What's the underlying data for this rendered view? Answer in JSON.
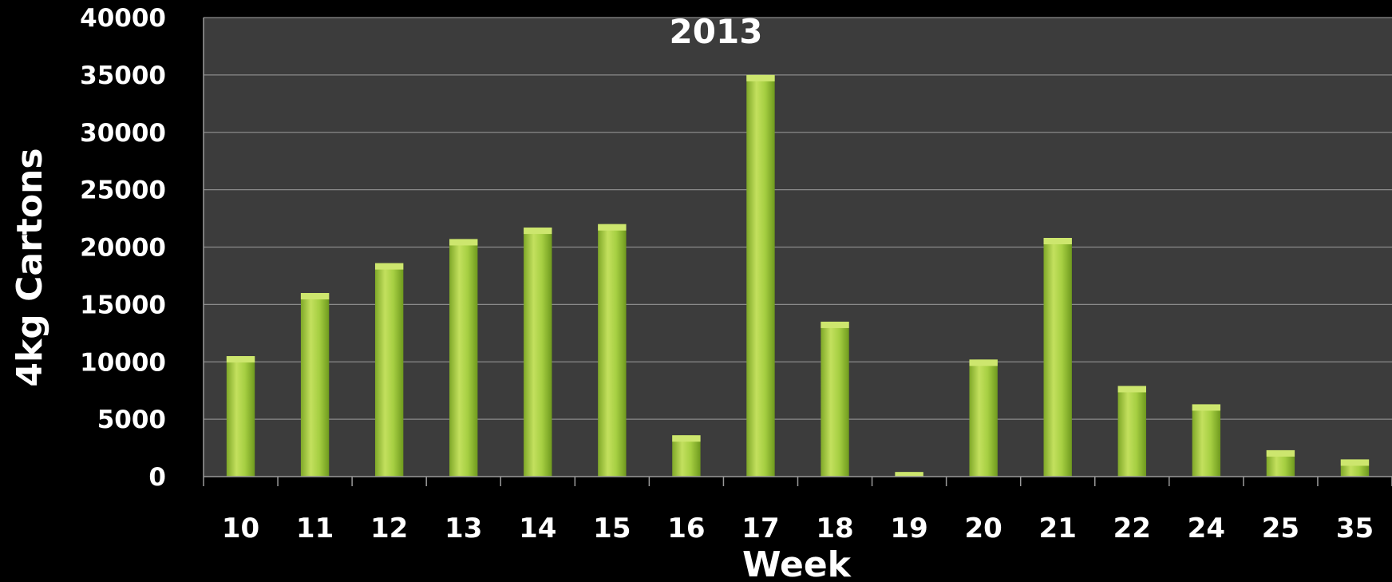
{
  "chart_data": {
    "type": "bar",
    "title": "2013",
    "xlabel": "Week",
    "ylabel": "4kg Cartons",
    "categories": [
      "10",
      "11",
      "12",
      "13",
      "14",
      "15",
      "16",
      "17",
      "18",
      "19",
      "20",
      "21",
      "22",
      "24",
      "25",
      "35"
    ],
    "values": [
      10500,
      16000,
      18600,
      20700,
      21700,
      22000,
      3600,
      35000,
      13500,
      400,
      10200,
      20800,
      7900,
      6300,
      2300,
      1500
    ],
    "ylim": [
      0,
      40000
    ],
    "yticks": [
      "0",
      "5000",
      "10000",
      "15000",
      "20000",
      "25000",
      "30000",
      "35000",
      "40000"
    ],
    "grid": true,
    "legend": "none"
  },
  "colors": {
    "page_background": "#000000",
    "plot_background": "#3c3c3c",
    "gridline": "#8a8a8a",
    "bar_light": "#cde66e",
    "bar_main": "#9bc93a",
    "bar_dark": "#6f9a1e",
    "text": "#ffffff"
  }
}
